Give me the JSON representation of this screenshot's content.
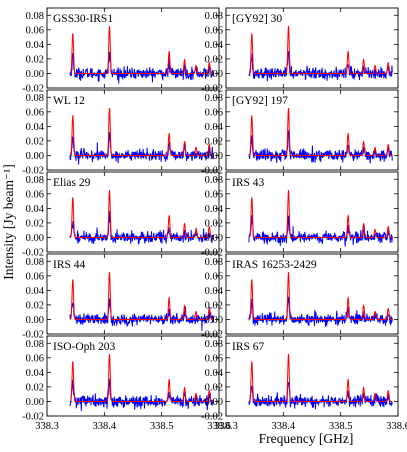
{
  "chart_data": {
    "type": "line",
    "layout": "5 rows x 2 columns, shared axes",
    "xlabel": "Frequency [GHz]",
    "ylabel": "Intensity [Jy beam⁻¹]",
    "xlim": [
      338.3,
      338.6
    ],
    "ylim": [
      -0.02,
      0.09
    ],
    "xticks": [
      338.3,
      338.4,
      338.5,
      338.6
    ],
    "xtick_labels": [
      "338.3",
      "338.4",
      "338.5",
      "338.6"
    ],
    "yticks": [
      -0.02,
      0.0,
      0.02,
      0.04,
      0.06,
      0.08
    ],
    "ytick_labels": [
      "-0.02",
      "0.00",
      "0.02",
      "0.04",
      "0.06",
      "0.08"
    ],
    "grid": false,
    "colors": {
      "model": "#ff0000",
      "observed": "#0000ff",
      "axes": "#000000"
    },
    "series_style": {
      "model": "red smooth line",
      "observed": "blue noisy line"
    },
    "model_lines": [
      {
        "freq": 338.345,
        "peak": 0.055
      },
      {
        "freq": 338.409,
        "peak": 0.065
      },
      {
        "freq": 338.513,
        "peak": 0.03
      },
      {
        "freq": 338.54,
        "peak": 0.019
      },
      {
        "freq": 338.56,
        "peak": 0.011
      },
      {
        "freq": 338.583,
        "peak": 0.015
      }
    ],
    "observed_range": [
      338.34,
      338.59
    ],
    "observed_noise_rms": 0.004,
    "panels": [
      {
        "label": "GSS30-IRS1"
      },
      {
        "label": "[GY92] 30"
      },
      {
        "label": "WL 12"
      },
      {
        "label": "[GY92] 197"
      },
      {
        "label": "Elias 29"
      },
      {
        "label": "IRS 43"
      },
      {
        "label": "IRS 44"
      },
      {
        "label": "IRAS 16253-2429"
      },
      {
        "label": "ISO-Oph 203"
      },
      {
        "label": "IRS 67"
      }
    ]
  }
}
